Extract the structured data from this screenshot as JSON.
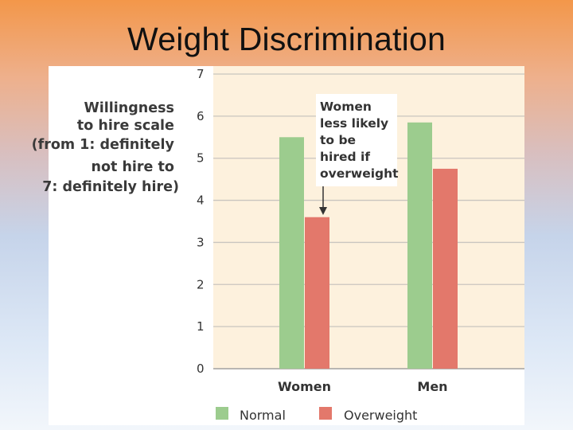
{
  "slide": {
    "title": "Weight Discrimination"
  },
  "chart_data": {
    "type": "bar",
    "categories": [
      "Women",
      "Men"
    ],
    "series": [
      {
        "name": "Normal",
        "values": [
          5.5,
          5.85
        ],
        "color": "#9ccc8e"
      },
      {
        "name": "Overweight",
        "values": [
          3.6,
          4.75
        ],
        "color": "#e3786b"
      }
    ],
    "ylim": [
      0,
      7
    ],
    "yticks": [
      "0",
      "1",
      "2",
      "3",
      "4",
      "5",
      "6",
      "7"
    ],
    "ylabel_lines": [
      "Willingness",
      "to hire scale",
      "(from 1: definitely",
      "not hire to",
      "7: definitely hire)"
    ],
    "annotation_lines": [
      "Women",
      "less likely",
      "to be",
      "hired if",
      "overweight"
    ],
    "legend": [
      "Normal",
      "Overweight"
    ],
    "legend_position": "bottom",
    "grid": true,
    "colors": {
      "plot_bg": "#fdf1dd",
      "grid": "#c9c5bf",
      "axis": "#b9b6b2"
    }
  }
}
